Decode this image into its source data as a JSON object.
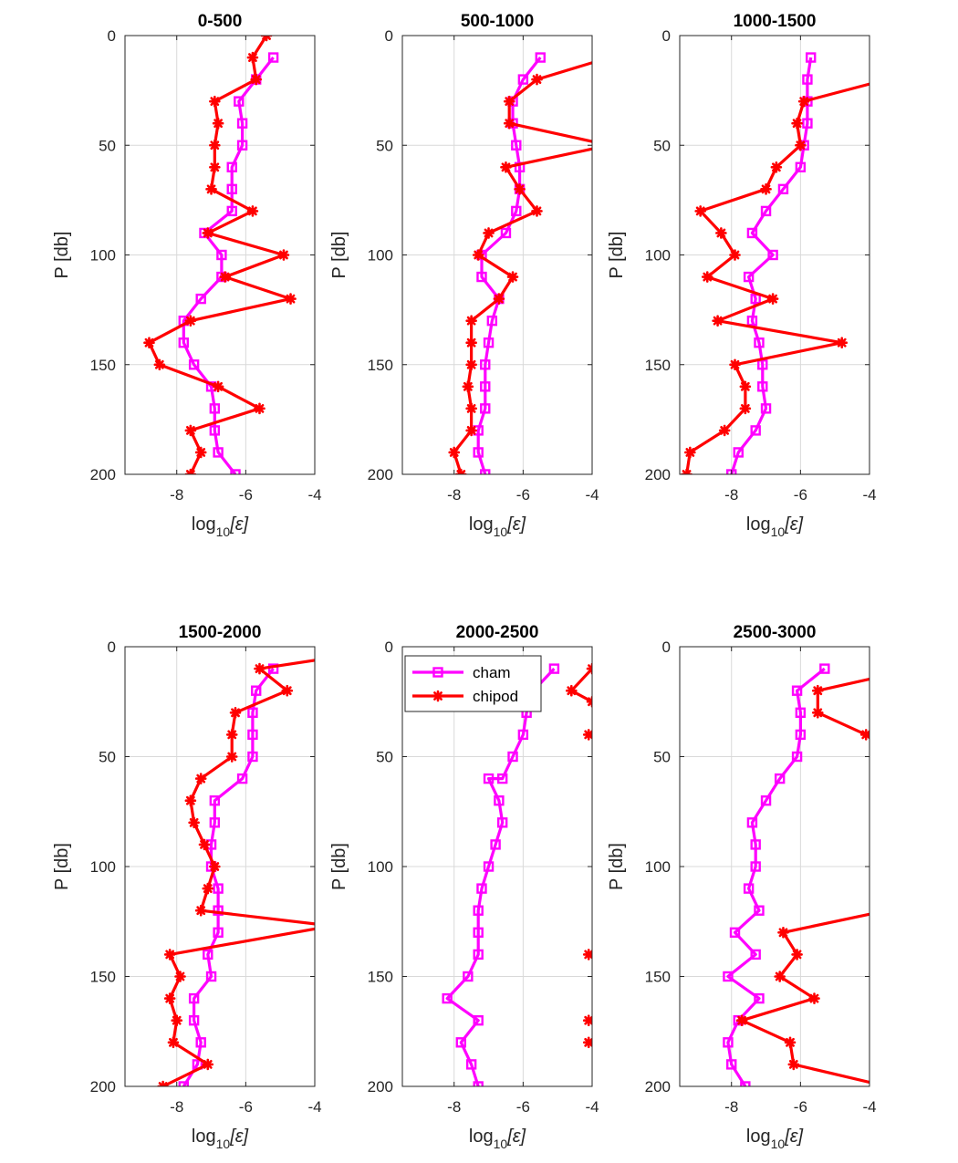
{
  "colors": {
    "cham": "#ff00ff",
    "chipod": "#ff0000",
    "grid": "#d9d9d9",
    "axis": "#262626"
  },
  "chart_data": [
    {
      "type": "line",
      "title": "0-500",
      "xlabel": "log10[ε]",
      "xlabel_main": "log",
      "xlabel_sub": "10",
      "xlabel_arg": "[ε]",
      "ylabel": "P [db]",
      "xlim": [
        -9.5,
        -4
      ],
      "ylim": [
        0,
        200
      ],
      "y_reversed": true,
      "grid": true,
      "xticks": [
        -8,
        -6,
        -4
      ],
      "yticks": [
        0,
        50,
        100,
        150,
        200
      ],
      "series": [
        {
          "name": "cham",
          "marker": "square",
          "x": [
            -5.2,
            -5.7,
            -6.2,
            -6.1,
            -6.1,
            -6.4,
            -6.4,
            -6.4,
            -7.2,
            -6.7,
            -6.7,
            -7.3,
            -7.8,
            -7.8,
            -7.5,
            -7.0,
            -6.9,
            -6.9,
            -6.8,
            -6.3
          ],
          "y": [
            10,
            20,
            30,
            40,
            50,
            60,
            70,
            80,
            90,
            100,
            110,
            120,
            130,
            140,
            150,
            160,
            170,
            180,
            190,
            200
          ]
        },
        {
          "name": "chipod",
          "marker": "star",
          "x": [
            -5.4,
            -5.8,
            -5.7,
            -6.9,
            -6.8,
            -6.9,
            -6.9,
            -7.0,
            -5.8,
            -7.1,
            -4.9,
            -6.6,
            -4.7,
            -7.6,
            -8.8,
            -8.5,
            -6.8,
            -5.6,
            -7.6,
            -7.3,
            -7.6
          ],
          "y": [
            0,
            10,
            20,
            30,
            40,
            50,
            60,
            70,
            80,
            90,
            100,
            110,
            120,
            130,
            140,
            150,
            160,
            170,
            180,
            190,
            200
          ]
        }
      ]
    },
    {
      "type": "line",
      "title": "500-1000",
      "xlabel": "log10[ε]",
      "xlabel_main": "log",
      "xlabel_sub": "10",
      "xlabel_arg": "[ε]",
      "ylabel": "P [db]",
      "xlim": [
        -9.5,
        -4
      ],
      "ylim": [
        0,
        200
      ],
      "y_reversed": true,
      "grid": true,
      "xticks": [
        -8,
        -6,
        -4
      ],
      "yticks": [
        0,
        50,
        100,
        150,
        200
      ],
      "series": [
        {
          "name": "cham",
          "marker": "square",
          "x": [
            -5.5,
            -6.0,
            -6.3,
            -6.3,
            -6.2,
            -6.1,
            -6.1,
            -6.2,
            -6.5,
            -7.2,
            -7.2,
            -6.7,
            -6.9,
            -7.0,
            -7.1,
            -7.1,
            -7.1,
            -7.3,
            -7.3,
            -7.1
          ],
          "y": [
            10,
            20,
            30,
            40,
            50,
            60,
            70,
            80,
            90,
            100,
            110,
            120,
            130,
            140,
            150,
            160,
            170,
            180,
            190,
            200
          ]
        },
        {
          "name": "chipod",
          "marker": "star",
          "x": [
            -3.5,
            -5.6,
            -6.4,
            -6.4,
            -3.5,
            -6.5,
            -6.1,
            -5.6,
            -7.0,
            -7.3,
            -6.3,
            -6.7,
            -7.5,
            -7.5,
            -7.5,
            -7.6,
            -7.5,
            -7.5,
            -8.0,
            -7.8
          ],
          "y": [
            10,
            20,
            30,
            40,
            50,
            60,
            70,
            80,
            90,
            100,
            110,
            120,
            130,
            140,
            150,
            160,
            170,
            180,
            190,
            200
          ]
        }
      ]
    },
    {
      "type": "line",
      "title": "1000-1500",
      "xlabel": "log10[ε]",
      "xlabel_main": "log",
      "xlabel_sub": "10",
      "xlabel_arg": "[ε]",
      "ylabel": "P [db]",
      "xlim": [
        -9.5,
        -4
      ],
      "ylim": [
        0,
        200
      ],
      "y_reversed": true,
      "grid": true,
      "xticks": [
        -8,
        -6,
        -4
      ],
      "yticks": [
        0,
        50,
        100,
        150,
        200
      ],
      "series": [
        {
          "name": "cham",
          "marker": "square",
          "x": [
            -5.7,
            -5.8,
            -5.8,
            -5.8,
            -5.9,
            -6.0,
            -6.5,
            -7.0,
            -7.4,
            -6.8,
            -7.5,
            -7.3,
            -7.4,
            -7.2,
            -7.1,
            -7.1,
            -7.0,
            -7.3,
            -7.8,
            -8.0
          ],
          "y": [
            10,
            20,
            30,
            40,
            50,
            60,
            70,
            80,
            90,
            100,
            110,
            120,
            130,
            140,
            150,
            160,
            170,
            180,
            190,
            200
          ]
        },
        {
          "name": "chipod",
          "marker": "star",
          "x": [
            -3.5,
            -5.9,
            -6.1,
            -6.0,
            -6.7,
            -7.0,
            -8.9,
            -8.3,
            -7.9,
            -8.7,
            -6.8,
            -8.4,
            -4.8,
            -7.9,
            -7.6,
            -7.6,
            -8.2,
            -9.2,
            -9.3
          ],
          "y": [
            20,
            30,
            40,
            50,
            60,
            70,
            80,
            90,
            100,
            110,
            120,
            130,
            140,
            150,
            160,
            170,
            180,
            190,
            200
          ]
        }
      ]
    },
    {
      "type": "line",
      "title": "1500-2000",
      "xlabel": "log10[ε]",
      "xlabel_main": "log",
      "xlabel_sub": "10",
      "xlabel_arg": "[ε]",
      "ylabel": "P [db]",
      "xlim": [
        -9.5,
        -4
      ],
      "ylim": [
        0,
        200
      ],
      "y_reversed": true,
      "grid": true,
      "xticks": [
        -8,
        -6,
        -4
      ],
      "yticks": [
        0,
        50,
        100,
        150,
        200
      ],
      "series": [
        {
          "name": "cham",
          "marker": "square",
          "x": [
            -5.2,
            -5.7,
            -5.8,
            -5.8,
            -5.8,
            -6.1,
            -6.9,
            -6.9,
            -7.0,
            -7.0,
            -6.8,
            -6.8,
            -6.8,
            -7.1,
            -7.0,
            -7.5,
            -7.5,
            -7.3,
            -7.4,
            -7.8
          ],
          "y": [
            10,
            20,
            30,
            40,
            50,
            60,
            70,
            80,
            90,
            100,
            110,
            120,
            130,
            140,
            150,
            160,
            170,
            180,
            190,
            200
          ]
        },
        {
          "name": "chipod",
          "marker": "star",
          "x": [
            -3.5,
            -5.6,
            -4.8,
            -6.3,
            -6.4,
            -6.4,
            -7.3,
            -7.6,
            -7.5,
            -7.2,
            -6.9,
            -7.1,
            -7.3,
            -3.5,
            -8.2,
            -7.9,
            -8.2,
            -8.0,
            -8.1,
            -7.1,
            -8.4
          ],
          "y": [
            5,
            10,
            20,
            30,
            40,
            50,
            60,
            70,
            80,
            90,
            100,
            110,
            120,
            127,
            140,
            150,
            160,
            170,
            180,
            190,
            200
          ]
        }
      ]
    },
    {
      "type": "line",
      "title": "2000-2500",
      "xlabel": "log10[ε]",
      "xlabel_main": "log",
      "xlabel_sub": "10",
      "xlabel_arg": "[ε]",
      "ylabel": "P [db]",
      "xlim": [
        -9.5,
        -4
      ],
      "ylim": [
        0,
        200
      ],
      "y_reversed": true,
      "grid": true,
      "xticks": [
        -8,
        -6,
        -4
      ],
      "yticks": [
        0,
        50,
        100,
        150,
        200
      ],
      "legend": {
        "placement": "top-left",
        "entries": [
          "cham",
          "chipod"
        ]
      },
      "series": [
        {
          "name": "cham",
          "marker": "square",
          "x": [
            -5.1,
            -5.7,
            -5.9,
            -6.0,
            -6.3,
            -6.6,
            -7.0,
            -6.7,
            -6.6,
            -6.8,
            -7.0,
            -7.2,
            -7.3,
            -7.3,
            -7.3,
            -7.6,
            -8.2,
            -7.3,
            -7.8,
            -7.5,
            -7.3
          ],
          "y": [
            10,
            20,
            30,
            40,
            50,
            60,
            60,
            70,
            80,
            90,
            100,
            110,
            120,
            130,
            140,
            150,
            160,
            170,
            180,
            190,
            200
          ]
        },
        {
          "name": "chipod",
          "marker": "star",
          "segments": [
            {
              "x": [
                -3.5,
                -4.0,
                -4.6,
                -4.0,
                -3.5
              ],
              "y": [
                8,
                10,
                20,
                25,
                28
              ]
            },
            {
              "x": [
                -4.1,
                -3.5
              ],
              "y": [
                40,
                40
              ]
            },
            {
              "x": [
                -4.1,
                -3.5
              ],
              "y": [
                140,
                140
              ]
            },
            {
              "x": [
                -4.1,
                -3.5
              ],
              "y": [
                170,
                170
              ]
            },
            {
              "x": [
                -4.1,
                -3.5
              ],
              "y": [
                180,
                180
              ]
            }
          ]
        }
      ]
    },
    {
      "type": "line",
      "title": "2500-3000",
      "xlabel": "log10[ε]",
      "xlabel_main": "log",
      "xlabel_sub": "10",
      "xlabel_arg": "[ε]",
      "ylabel": "P [db]",
      "xlim": [
        -9.5,
        -4
      ],
      "ylim": [
        0,
        200
      ],
      "y_reversed": true,
      "grid": true,
      "xticks": [
        -8,
        -6,
        -4
      ],
      "yticks": [
        0,
        50,
        100,
        150,
        200
      ],
      "series": [
        {
          "name": "cham",
          "marker": "square",
          "x": [
            -5.3,
            -6.1,
            -6.0,
            -6.0,
            -6.1,
            -6.6,
            -7.0,
            -7.4,
            -7.3,
            -7.3,
            -7.5,
            -7.2,
            -7.9,
            -7.3,
            -8.1,
            -7.2,
            -7.8,
            -8.1,
            -8.0,
            -7.6
          ],
          "y": [
            10,
            20,
            30,
            40,
            50,
            60,
            70,
            80,
            90,
            100,
            110,
            120,
            130,
            140,
            150,
            160,
            170,
            180,
            190,
            200
          ]
        },
        {
          "name": "chipod",
          "marker": "star",
          "segments": [
            {
              "x": [
                -3.5,
                -5.5,
                -5.5,
                -4.1
              ],
              "y": [
                13,
                20,
                30,
                40
              ]
            },
            {
              "x": [
                -3.5,
                -6.5,
                -6.1,
                -6.6,
                -5.6,
                -7.7,
                -6.3,
                -6.2,
                -3.5
              ],
              "y": [
                120,
                130,
                140,
                150,
                160,
                170,
                180,
                190,
                200
              ]
            }
          ]
        }
      ]
    }
  ]
}
